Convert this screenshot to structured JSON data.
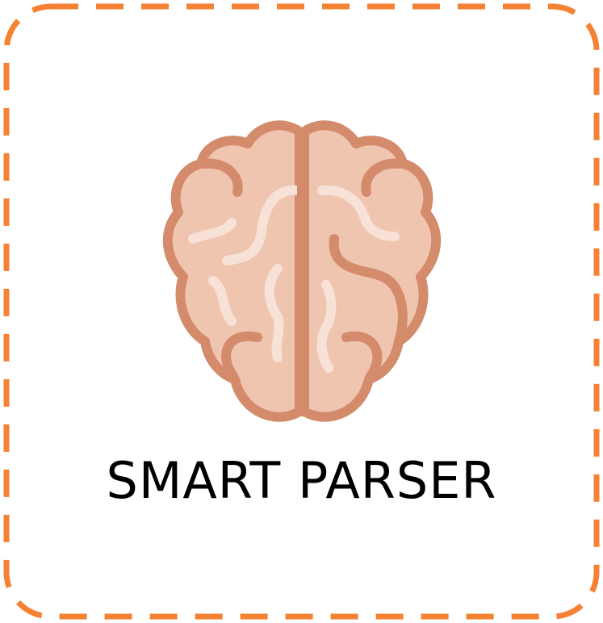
{
  "card": {
    "title": "SMART PARSER",
    "icon": "brain-icon"
  },
  "colors": {
    "border": "#f58133",
    "brain_fill": "#efc5b0",
    "brain_outline": "#d38b6b",
    "brain_highlight": "#f8e1d6",
    "text": "#000000",
    "background": "#ffffff"
  }
}
